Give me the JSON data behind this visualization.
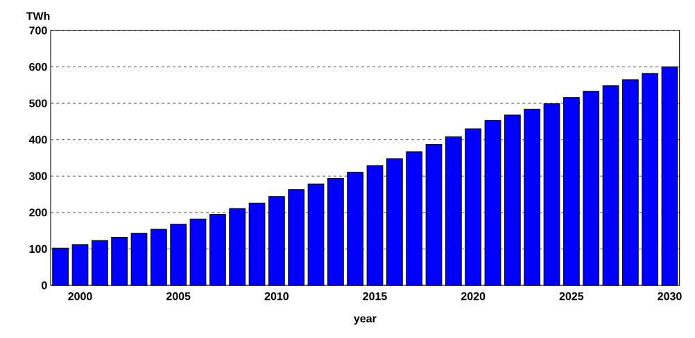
{
  "chart_data": {
    "type": "bar",
    "xlabel": "year",
    "ylabel": "TWh",
    "categories": [
      null,
      "2000",
      null,
      null,
      null,
      null,
      "2005",
      null,
      null,
      null,
      null,
      "2010",
      null,
      null,
      null,
      null,
      "2015",
      null,
      null,
      null,
      null,
      "2020",
      null,
      null,
      null,
      null,
      "2025",
      null,
      null,
      null,
      null,
      "2030"
    ],
    "values": [
      102,
      112,
      123,
      132,
      143,
      154,
      168,
      182,
      195,
      211,
      226,
      244,
      263,
      278,
      294,
      311,
      329,
      348,
      367,
      387,
      408,
      430,
      453,
      468,
      484,
      499,
      516,
      533,
      548,
      565,
      582,
      600
    ],
    "color": "#0000ff",
    "ylim": [
      0,
      700
    ],
    "yticks": [
      0,
      100,
      200,
      300,
      400,
      500,
      600,
      700
    ],
    "grid": "y"
  }
}
